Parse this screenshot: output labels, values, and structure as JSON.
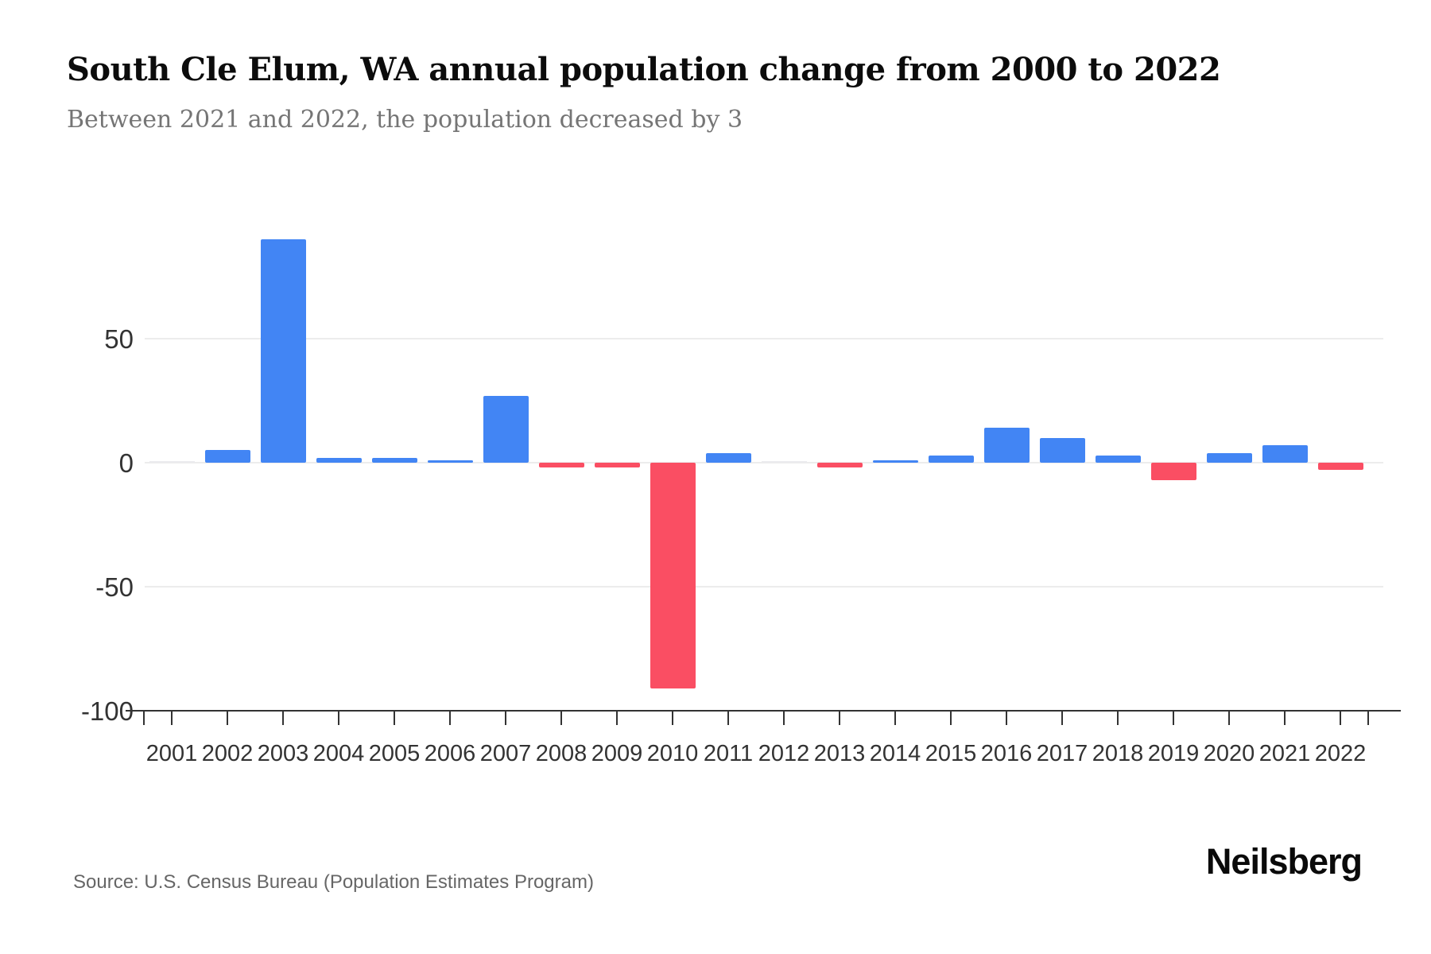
{
  "header": {
    "title": "South Cle Elum, WA annual population change from 2000 to 2022",
    "subtitle": "Between 2021 and 2022, the population decreased by 3"
  },
  "chart_data": {
    "type": "bar",
    "title": "South Cle Elum, WA annual population change from 2000 to 2022",
    "xlabel": "",
    "ylabel": "",
    "categories": [
      "2001",
      "2002",
      "2003",
      "2004",
      "2005",
      "2006",
      "2007",
      "2008",
      "2009",
      "2010",
      "2011",
      "2012",
      "2013",
      "2014",
      "2015",
      "2016",
      "2017",
      "2018",
      "2019",
      "2020",
      "2021",
      "2022"
    ],
    "values": [
      0,
      5,
      90,
      2,
      2,
      1,
      27,
      -2,
      -2,
      -91,
      4,
      0,
      -2,
      1,
      3,
      14,
      10,
      3,
      -7,
      4,
      7,
      -3
    ],
    "ylim": [
      -100,
      100
    ],
    "yticks": [
      {
        "value": 50,
        "label": "50"
      },
      {
        "value": 0,
        "label": "0"
      },
      {
        "value": -50,
        "label": "-50"
      },
      {
        "value": -100,
        "label": "-100"
      }
    ],
    "grid": true,
    "legend": "none",
    "colors": {
      "positive": "#4285F4",
      "negative": "#FA4E63"
    }
  },
  "footer": {
    "source": "Source: U.S. Census Bureau (Population Estimates Program)",
    "brand": "Neilsberg"
  }
}
